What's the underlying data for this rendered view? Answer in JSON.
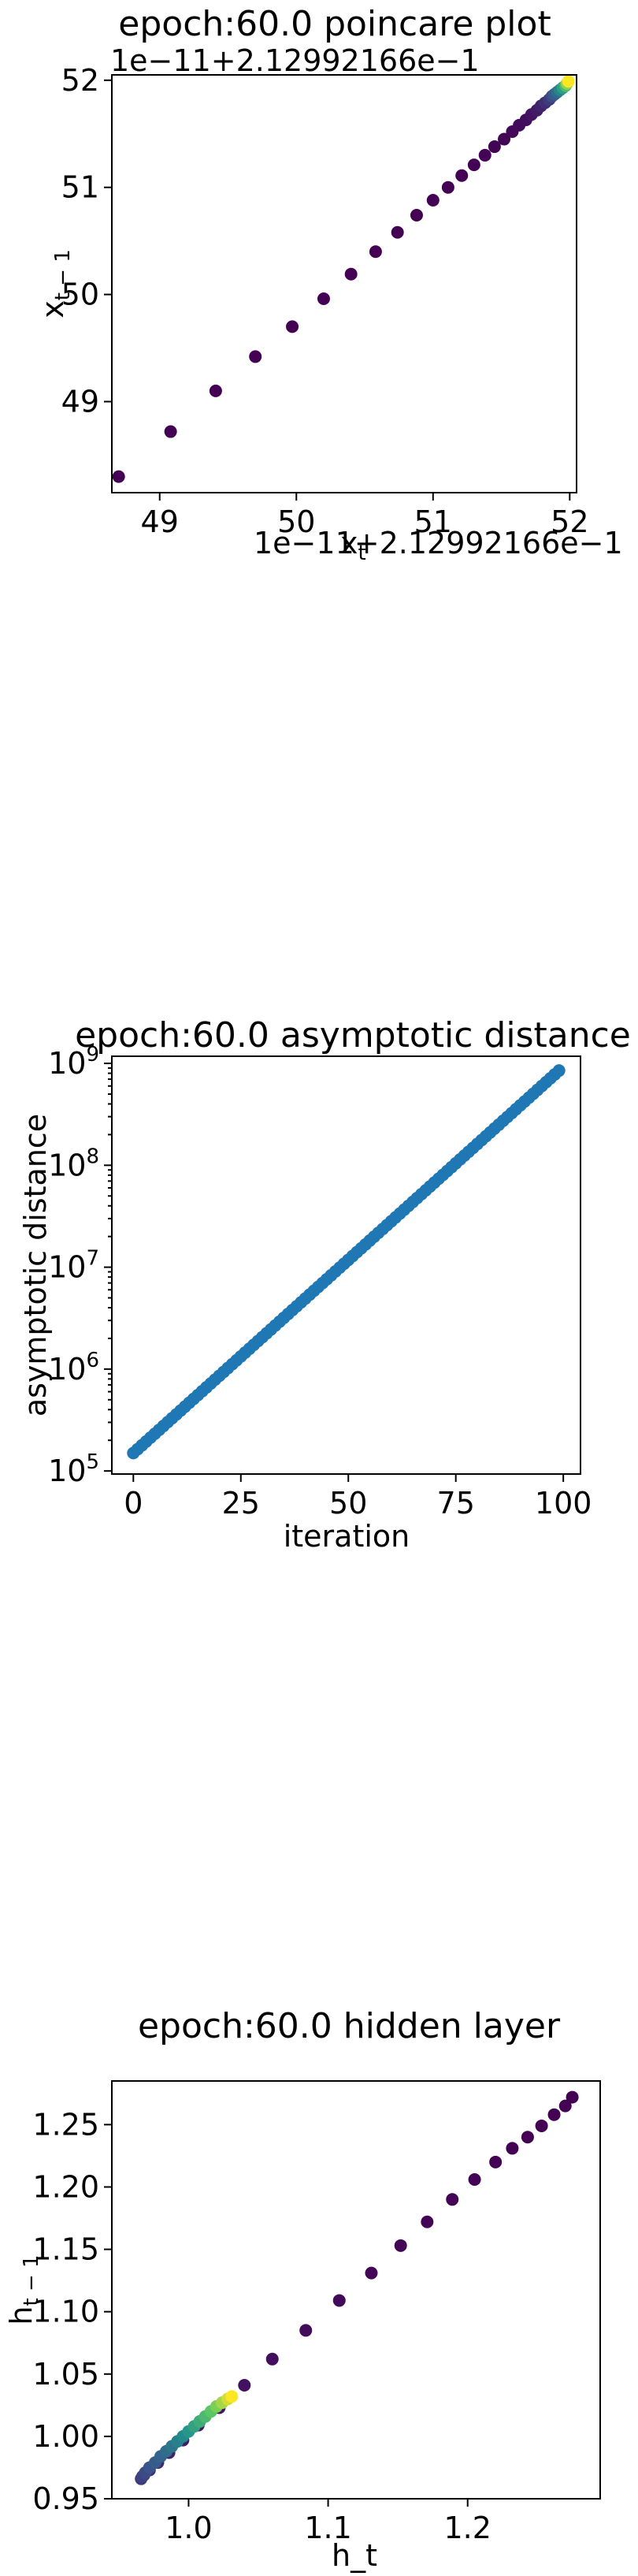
{
  "chart_data": [
    {
      "type": "scatter",
      "title": "epoch:60.0 poincare plot",
      "xlabel": "x_t",
      "ylabel": "x_{t-1}",
      "x_offset_label": "1e−11+2.12992166e−1",
      "y_offset_label": "1e−11+2.12992166e−1",
      "colormap": "viridis",
      "xlim": [
        48.65,
        52.05
      ],
      "ylim": [
        48.15,
        52.05
      ],
      "xticks": [
        49,
        50,
        51,
        52
      ],
      "yticks": [
        49,
        50,
        51,
        52
      ],
      "x": [
        48.7,
        49.08,
        49.41,
        49.7,
        49.97,
        50.2,
        50.4,
        50.58,
        50.74,
        50.88,
        51.0,
        51.11,
        51.21,
        51.3,
        51.38,
        51.45,
        51.52,
        51.58,
        51.63,
        51.68,
        51.72,
        51.76,
        51.79,
        51.82,
        51.85,
        51.87,
        51.89,
        51.91,
        51.93,
        51.95,
        51.97,
        51.98,
        51.99
      ],
      "y": [
        48.3,
        48.72,
        49.1,
        49.42,
        49.7,
        49.96,
        50.19,
        50.4,
        50.58,
        50.74,
        50.88,
        51.0,
        51.11,
        51.21,
        51.3,
        51.38,
        51.45,
        51.52,
        51.58,
        51.63,
        51.68,
        51.72,
        51.76,
        51.79,
        51.82,
        51.85,
        51.87,
        51.89,
        51.91,
        51.93,
        51.95,
        51.97,
        51.99
      ],
      "grid": false
    },
    {
      "type": "scatter",
      "title": "epoch:60.0 asymptotic distance",
      "xlabel": "iteration",
      "ylabel": "asymptotic distance",
      "yscale": "log",
      "color": "#1f77b4",
      "xlim": [
        -5,
        104
      ],
      "ylim_log10": [
        4.97,
        9.07
      ],
      "xticks": [
        0,
        25,
        50,
        75,
        100
      ],
      "yticks": [
        "10^5",
        "10^6",
        "10^7",
        "10^8",
        "10^9"
      ],
      "n_points": 100,
      "y_start": 150000,
      "y_end": 850000000,
      "grid": false
    },
    {
      "type": "scatter",
      "title": "epoch:60.0 hidden layer",
      "xlabel": "h_t",
      "ylabel": "h_{t-1}",
      "colormap": "viridis",
      "xlim": [
        0.945,
        1.295
      ],
      "ylim": [
        0.95,
        1.285
      ],
      "xticks": [
        "1.0",
        "1.1",
        "1.2"
      ],
      "yticks": [
        "0.95",
        "1.00",
        "1.05",
        "1.10",
        "1.15",
        "1.20",
        "1.25"
      ],
      "x": [
        1.275,
        1.27,
        1.262,
        1.253,
        1.243,
        1.232,
        1.22,
        1.205,
        1.189,
        1.171,
        1.152,
        1.131,
        1.108,
        1.084,
        1.06,
        1.04,
        1.022,
        1.007,
        0.996,
        0.986,
        0.978,
        0.972,
        0.968,
        0.966,
        0.967,
        0.969,
        0.972,
        0.976,
        0.98,
        0.984,
        0.988,
        0.992,
        0.996,
        1.0,
        1.004,
        1.008,
        1.012,
        1.016,
        1.02,
        1.024,
        1.028,
        1.031
      ],
      "y": [
        1.272,
        1.265,
        1.258,
        1.249,
        1.24,
        1.231,
        1.22,
        1.206,
        1.19,
        1.172,
        1.153,
        1.131,
        1.109,
        1.085,
        1.062,
        1.041,
        1.023,
        1.009,
        0.997,
        0.987,
        0.979,
        0.973,
        0.969,
        0.966,
        0.968,
        0.971,
        0.975,
        0.979,
        0.984,
        0.988,
        0.992,
        0.996,
        1.0,
        1.004,
        1.008,
        1.012,
        1.016,
        1.02,
        1.024,
        1.027,
        1.03,
        1.032
      ],
      "grid": false
    }
  ]
}
